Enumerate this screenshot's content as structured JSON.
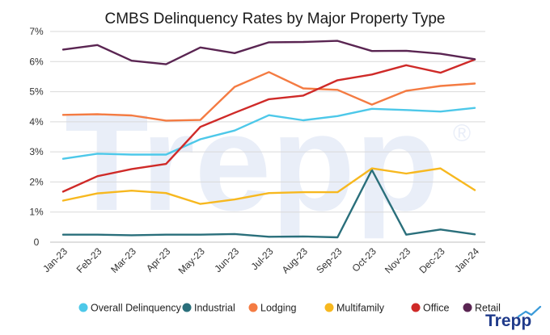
{
  "chart_data": {
    "type": "line",
    "title": "CMBS Delinquency Rates by Major Property Type",
    "xlabel": "",
    "ylabel": "",
    "categories": [
      "Jan-23",
      "Feb-23",
      "Mar-23",
      "Apr-23",
      "May-23",
      "Jun-23",
      "Jul-23",
      "Aug-23",
      "Sep-23",
      "Oct-23",
      "Nov-23",
      "Dec-23",
      "Jan-24"
    ],
    "y_ticks": [
      "0",
      "1%",
      "2%",
      "3%",
      "4%",
      "5%",
      "6%",
      "7%"
    ],
    "ylim": [
      0,
      7
    ],
    "grid": true,
    "legend_position": "bottom",
    "series": [
      {
        "name": "Overall Delinquency",
        "color": "#4dc8e9",
        "values": [
          2.77,
          2.94,
          2.91,
          2.91,
          3.42,
          3.71,
          4.22,
          4.05,
          4.19,
          4.43,
          4.39,
          4.34,
          4.46
        ]
      },
      {
        "name": "Industrial",
        "color": "#2a6f7b",
        "values": [
          0.25,
          0.25,
          0.23,
          0.25,
          0.25,
          0.27,
          0.18,
          0.19,
          0.16,
          2.4,
          0.25,
          0.42,
          0.26
        ]
      },
      {
        "name": "Lodging",
        "color": "#f47b42",
        "values": [
          4.23,
          4.25,
          4.21,
          4.04,
          4.06,
          5.16,
          5.65,
          5.11,
          5.06,
          4.57,
          5.03,
          5.19,
          5.27
        ]
      },
      {
        "name": "Multifamily",
        "color": "#f7b81f",
        "values": [
          1.38,
          1.62,
          1.71,
          1.63,
          1.27,
          1.42,
          1.63,
          1.66,
          1.66,
          2.45,
          2.28,
          2.45,
          1.73
        ]
      },
      {
        "name": "Office",
        "color": "#cf2a28",
        "values": [
          1.68,
          2.19,
          2.43,
          2.6,
          3.83,
          4.3,
          4.75,
          4.87,
          5.38,
          5.57,
          5.88,
          5.63,
          6.07
        ]
      },
      {
        "name": "Retail",
        "color": "#5a2552",
        "values": [
          6.4,
          6.55,
          6.03,
          5.91,
          6.47,
          6.28,
          6.64,
          6.65,
          6.69,
          6.35,
          6.36,
          6.26,
          6.08
        ]
      }
    ]
  },
  "watermark": {
    "text": "Trepp",
    "registered": "®"
  },
  "logo": {
    "text": "Trepp",
    "icon": "chart-line-logo-icon"
  }
}
